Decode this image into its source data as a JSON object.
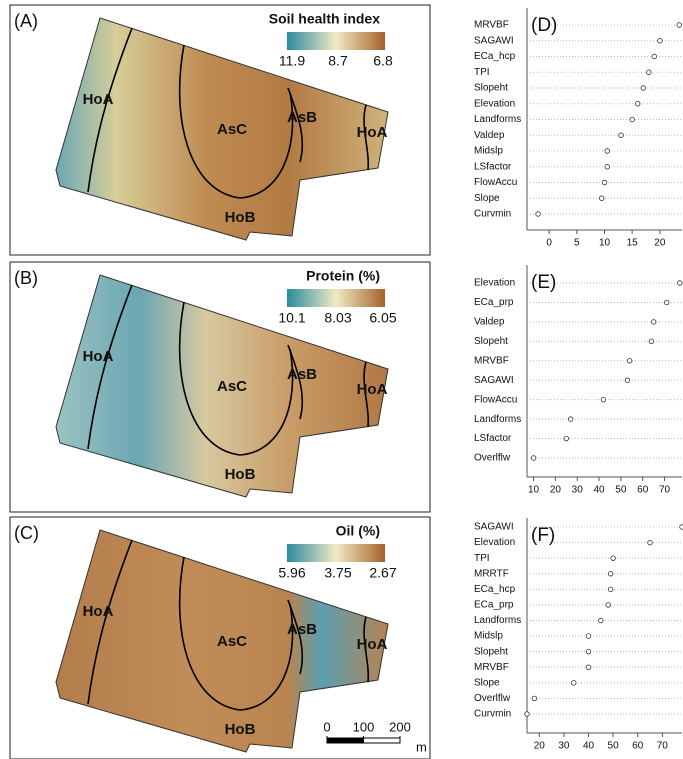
{
  "maps": [
    {
      "panel": "(A)",
      "legend_title": "Soil health index",
      "legend_ticks": [
        11.9,
        8.7,
        6.8
      ],
      "zones": [
        "HoA",
        "AsC",
        "AsB",
        "HoA",
        "HoB"
      ]
    },
    {
      "panel": "(B)",
      "legend_title": "Protein (%)",
      "legend_ticks": [
        10.1,
        8.03,
        6.05
      ],
      "zones": [
        "HoA",
        "AsC",
        "AsB",
        "HoA",
        "HoB"
      ]
    },
    {
      "panel": "(C)",
      "legend_title": "Oil (%)",
      "legend_ticks": [
        5.96,
        3.75,
        2.67
      ],
      "zones": [
        "HoA",
        "AsC",
        "AsB",
        "HoA",
        "HoB"
      ]
    }
  ],
  "scale_bar": {
    "ticks": [
      0,
      100,
      200
    ],
    "unit": "m"
  },
  "chart_data": [
    {
      "type": "dot",
      "panel": "(D)",
      "categories": [
        "MRVBF",
        "SAGAWI",
        "ECa_hcp",
        "TPI",
        "Slopeht",
        "Elevation",
        "Landforms",
        "Valdep",
        "Midslp",
        "LSfactor",
        "FlowAccu",
        "Slope",
        "Curvmin"
      ],
      "values": [
        23.5,
        20,
        19,
        18,
        17,
        16,
        15,
        13,
        10.5,
        10.5,
        10,
        9.5,
        -2
      ],
      "xlim": [
        -4,
        24
      ],
      "xticks": [
        0,
        5,
        10,
        15,
        20
      ]
    },
    {
      "type": "dot",
      "panel": "(E)",
      "categories": [
        "Elevation",
        "ECa_prp",
        "Valdep",
        "Slopeht",
        "MRVBF",
        "SAGAWI",
        "FlowAccu",
        "Landforms",
        "LSfactor",
        "Overlflw"
      ],
      "values": [
        77,
        71,
        65,
        64,
        54,
        53,
        42,
        27,
        25,
        10
      ],
      "xlim": [
        7,
        78
      ],
      "xticks": [
        10,
        20,
        30,
        40,
        50,
        60,
        70
      ]
    },
    {
      "type": "dot",
      "panel": "(F)",
      "categories": [
        "SAGAWI",
        "Elevation",
        "TPI",
        "MRRTF",
        "ECa_hcp",
        "ECa_prp",
        "Landforms",
        "Midslp",
        "Slopeht",
        "MRVBF",
        "Slope",
        "Overlflw",
        "Curvmin"
      ],
      "values": [
        78,
        65,
        50,
        49,
        49,
        48,
        45,
        40,
        40,
        40,
        34,
        18,
        15
      ],
      "xlim": [
        15,
        78
      ],
      "xticks": [
        20,
        30,
        40,
        50,
        60,
        70
      ]
    }
  ]
}
